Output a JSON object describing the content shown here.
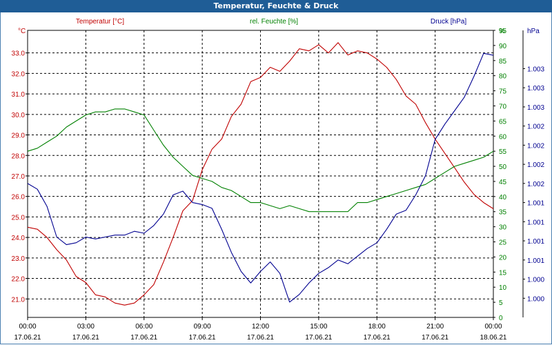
{
  "window": {
    "title": "Temperatur, Feuchte & Druck"
  },
  "chart_data": {
    "type": "line",
    "title": "Temperatur, Feuchte & Druck",
    "x_ticks": [
      {
        "time": "00:00",
        "date": "17.06.21",
        "h": 0
      },
      {
        "time": "03:00",
        "date": "17.06.21",
        "h": 3
      },
      {
        "time": "06:00",
        "date": "17.06.21",
        "h": 6
      },
      {
        "time": "09:00",
        "date": "17.06.21",
        "h": 9
      },
      {
        "time": "12:00",
        "date": "17.06.21",
        "h": 12
      },
      {
        "time": "15:00",
        "date": "17.06.21",
        "h": 15
      },
      {
        "time": "18:00",
        "date": "17.06.21",
        "h": 18
      },
      {
        "time": "21:00",
        "date": "17.06.21",
        "h": 21
      },
      {
        "time": "00:00",
        "date": "18.06.21",
        "h": 24
      }
    ],
    "xlim_hours": [
      0,
      24
    ],
    "grid": true,
    "axes": {
      "temperature": {
        "label": "Temperatur [°C]",
        "unit": "°C",
        "color": "#c00000",
        "ylim": [
          20.1,
          34.1
        ],
        "ticks": [
          "21.0",
          "22.0",
          "23.0",
          "24.0",
          "25.0",
          "26.0",
          "27.0",
          "28.0",
          "29.0",
          "30.0",
          "31.0",
          "32.0",
          "33.0"
        ],
        "tick_values": [
          21,
          22,
          23,
          24,
          25,
          26,
          27,
          28,
          29,
          30,
          31,
          32,
          33
        ]
      },
      "humidity": {
        "label": "rel. Feuchte [%]",
        "unit": "%",
        "color": "#008000",
        "ylim": [
          0,
          95
        ],
        "ticks": [
          "0",
          "5",
          "10",
          "15",
          "20",
          "25",
          "30",
          "35",
          "40",
          "45",
          "50",
          "55",
          "60",
          "65",
          "70",
          "75",
          "80",
          "85",
          "90",
          "95"
        ],
        "tick_values": [
          0,
          5,
          10,
          15,
          20,
          25,
          30,
          35,
          40,
          45,
          50,
          55,
          60,
          65,
          70,
          75,
          80,
          85,
          90,
          95
        ]
      },
      "pressure": {
        "label": "Druck [hPa]",
        "unit": "hPa",
        "color": "#000090",
        "ticks": [
          "1.000",
          "1.000",
          "1.001",
          "1.001",
          "1.001",
          "1.001",
          "1.002",
          "1.002",
          "1.002",
          "1.002",
          "1.003",
          "1.003",
          "1.003"
        ],
        "tick_values": [
          1,
          2,
          3,
          4,
          5,
          6,
          7,
          8,
          9,
          10,
          11,
          12,
          13
        ],
        "ylim": [
          0,
          15
        ]
      }
    },
    "series": [
      {
        "name": "Temperatur [°C]",
        "axis": "temperature",
        "color": "#c00000",
        "x": [
          0,
          0.5,
          1,
          1.5,
          2,
          2.5,
          3,
          3.5,
          4,
          4.5,
          5,
          5.5,
          6,
          6.5,
          7,
          7.5,
          8,
          8.5,
          9,
          9.5,
          10,
          10.5,
          11,
          11.5,
          12,
          12.5,
          13,
          13.5,
          14,
          14.5,
          15,
          15.5,
          16,
          16.5,
          17,
          17.5,
          18,
          18.5,
          19,
          19.5,
          20,
          20.5,
          21,
          21.5,
          22,
          22.5,
          23,
          23.5,
          24
        ],
        "values": [
          24.5,
          24.4,
          24.0,
          23.4,
          22.9,
          22.1,
          21.8,
          21.2,
          21.1,
          20.8,
          20.7,
          20.8,
          21.2,
          21.7,
          22.8,
          24.0,
          25.3,
          25.8,
          27.3,
          28.3,
          28.8,
          29.9,
          30.5,
          31.6,
          31.8,
          32.3,
          32.1,
          32.6,
          33.2,
          33.1,
          33.4,
          33.0,
          33.5,
          32.9,
          33.1,
          33.0,
          32.7,
          32.3,
          31.7,
          30.9,
          30.5,
          29.6,
          28.8,
          28.1,
          27.4,
          26.7,
          26.1,
          25.7,
          25.4
        ]
      },
      {
        "name": "rel. Feuchte [%]",
        "axis": "humidity",
        "color": "#008000",
        "x": [
          0,
          0.5,
          1,
          1.5,
          2,
          2.5,
          3,
          3.5,
          4,
          4.5,
          5,
          5.5,
          6,
          6.5,
          7,
          7.5,
          8,
          8.5,
          9,
          9.5,
          10,
          10.5,
          11,
          11.5,
          12,
          12.5,
          13,
          13.5,
          14,
          14.5,
          15,
          15.5,
          16,
          16.5,
          17,
          17.5,
          18,
          18.5,
          19,
          19.5,
          20,
          20.5,
          21,
          21.5,
          22,
          22.5,
          23,
          23.5,
          24
        ],
        "values": [
          55,
          56,
          58,
          60,
          63,
          65,
          67,
          68,
          68,
          69,
          69,
          68,
          67,
          62,
          57,
          53,
          50,
          47,
          46,
          45,
          43,
          42,
          40,
          38,
          38,
          37,
          36,
          37,
          36,
          35,
          35,
          35,
          35,
          35,
          38,
          38,
          39,
          40,
          41,
          42,
          43,
          44,
          46,
          48,
          50,
          51,
          52,
          53,
          55
        ]
      },
      {
        "name": "Druck [hPa]",
        "axis": "pressure",
        "color": "#000090",
        "x": [
          0,
          0.5,
          1,
          1.5,
          2,
          2.5,
          3,
          3.5,
          4,
          4.5,
          5,
          5.5,
          6,
          6.5,
          7,
          7.5,
          8,
          8.5,
          9,
          9.5,
          10,
          10.5,
          11,
          11.5,
          12,
          12.5,
          13,
          13.5,
          14,
          14.5,
          15,
          15.5,
          16,
          16.5,
          17,
          17.5,
          18,
          18.5,
          19,
          19.5,
          20,
          20.5,
          21,
          21.5,
          22,
          22.5,
          23,
          23.5,
          24
        ],
        "values": [
          7.0,
          6.7,
          5.8,
          4.2,
          3.8,
          3.9,
          4.2,
          4.1,
          4.2,
          4.3,
          4.3,
          4.5,
          4.4,
          4.8,
          5.4,
          6.4,
          6.6,
          6.0,
          5.9,
          5.7,
          4.6,
          3.4,
          2.4,
          1.8,
          2.4,
          2.9,
          2.3,
          0.8,
          1.2,
          1.8,
          2.3,
          2.6,
          3.0,
          2.8,
          3.2,
          3.6,
          3.9,
          4.6,
          5.4,
          5.6,
          6.4,
          7.4,
          9.3,
          10.1,
          10.8,
          11.5,
          12.6,
          13.8,
          13.7
        ]
      }
    ]
  }
}
